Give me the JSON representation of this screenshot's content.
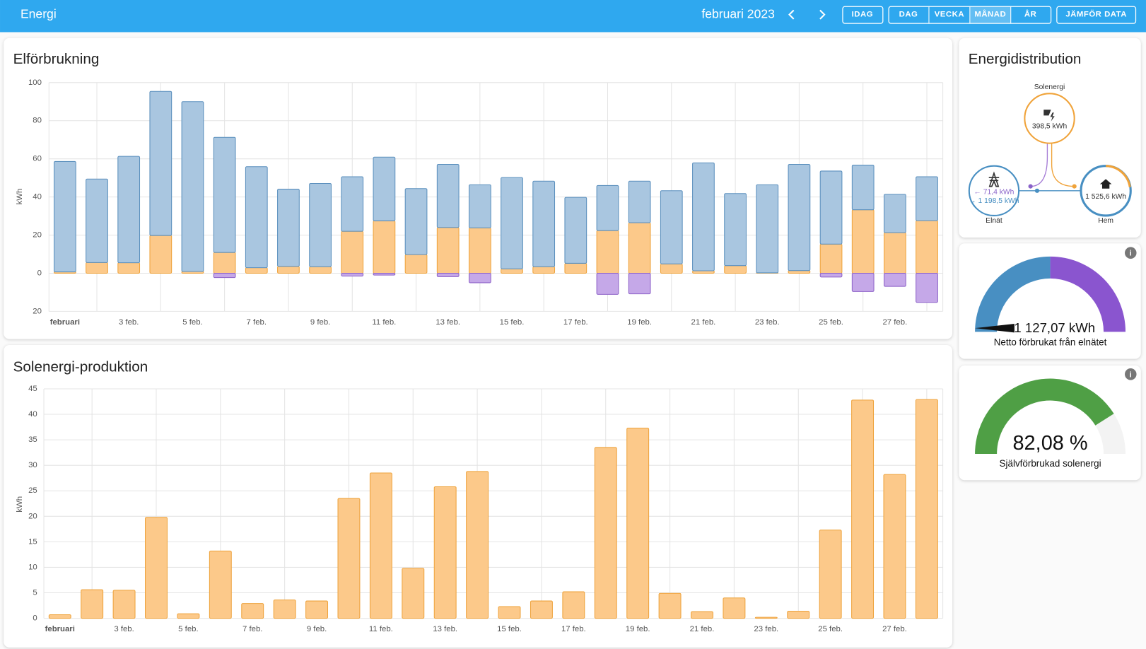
{
  "header": {
    "title": "Energi",
    "period": "februari 2023",
    "buttons": [
      "IDAG",
      "DAG",
      "VECKA",
      "MÅNAD",
      "ÅR",
      "JÄMFÖR DATA"
    ]
  },
  "chart_data": [
    {
      "type": "bar",
      "stacked": true,
      "title": "Elförbrukning",
      "y_label": "kWh",
      "categories": [
        "februari",
        null,
        "3 feb.",
        null,
        "5 feb.",
        null,
        "7 feb.",
        null,
        "9 feb.",
        null,
        "11 feb.",
        null,
        "13 feb.",
        null,
        "15 feb.",
        null,
        "17 feb.",
        null,
        "19 feb.",
        null,
        "21 feb.",
        null,
        "23 feb.",
        null,
        "25 feb.",
        null,
        "27 feb.",
        null
      ],
      "series": [
        {
          "color": "#fcc98a",
          "values": [
            0.7,
            5.6,
            5.5,
            19.8,
            0.9,
            10.9,
            2.9,
            3.6,
            3.4,
            22,
            27.5,
            9.8,
            24,
            23.8,
            2.3,
            3.4,
            5.2,
            22.4,
            26.5,
            4.9,
            1.3,
            4,
            0.2,
            1.4,
            15.3,
            33.3,
            21.3,
            27.6
          ]
        },
        {
          "color": "#a9c6e0",
          "values": [
            57.9,
            43.8,
            55.8,
            75.6,
            89.1,
            60.4,
            53,
            40.5,
            43.7,
            28.6,
            33.4,
            34.6,
            33.1,
            22.6,
            47.9,
            44.9,
            34.6,
            23.6,
            21.8,
            38.4,
            56.6,
            37.8,
            46.2,
            55.7,
            38.3,
            23.4,
            20.1,
            23
          ]
        },
        {
          "color": "#c5a8e8",
          "values": [
            0,
            0,
            0,
            0,
            0,
            -2.3,
            0,
            0,
            0,
            -1.5,
            -1,
            0,
            -1.8,
            -5,
            0,
            0,
            0,
            -11.1,
            -10.8,
            0,
            0,
            0,
            0,
            0,
            -2,
            -9.6,
            -6.9,
            -15.3
          ]
        }
      ],
      "ylim": [
        -20,
        100
      ],
      "yticks": [
        {
          "value": -20,
          "label": "20"
        },
        0,
        20,
        40,
        60,
        80,
        100
      ],
      "grid": true
    },
    {
      "type": "bar",
      "title": "Solenergi-produktion",
      "y_label": "kWh",
      "categories": [
        "februari",
        null,
        "3 feb.",
        null,
        "5 feb.",
        null,
        "7 feb.",
        null,
        "9 feb.",
        null,
        "11 feb.",
        null,
        "13 feb.",
        null,
        "15 feb.",
        null,
        "17 feb.",
        null,
        "19 feb.",
        null,
        "21 feb.",
        null,
        "23 feb.",
        null,
        "25 feb.",
        null,
        "27 feb.",
        null
      ],
      "series": [
        {
          "color": "#fcc98a",
          "values": [
            0.7,
            5.6,
            5.5,
            19.8,
            0.9,
            13.2,
            2.9,
            3.6,
            3.4,
            23.5,
            28.5,
            9.8,
            25.8,
            28.8,
            2.3,
            3.4,
            5.2,
            33.5,
            37.3,
            4.9,
            1.3,
            4.0,
            0.2,
            1.4,
            17.3,
            42.8,
            28.2,
            42.9
          ]
        }
      ],
      "ylim": [
        0,
        45
      ],
      "yticks": [
        0,
        5,
        10,
        15,
        20,
        25,
        30,
        35,
        40,
        45
      ],
      "grid": true
    }
  ],
  "distribution": {
    "title": "Energidistribution",
    "solar": {
      "label": "Solenergi",
      "value": "398,5 kWh"
    },
    "grid": {
      "label": "Elnät",
      "returned": "← 71,4 kWh",
      "consumed": "→ 1 198,5 kWh"
    },
    "home": {
      "label": "Hem",
      "value": "1 525,6 kWh"
    }
  },
  "gauges": [
    {
      "value_label": "1 127,07 kWh",
      "caption": "Netto förbrukat från elnätet"
    },
    {
      "value": 82.08,
      "value_label": "82,08 %",
      "caption": "Självförbrukad solenergi"
    }
  ]
}
